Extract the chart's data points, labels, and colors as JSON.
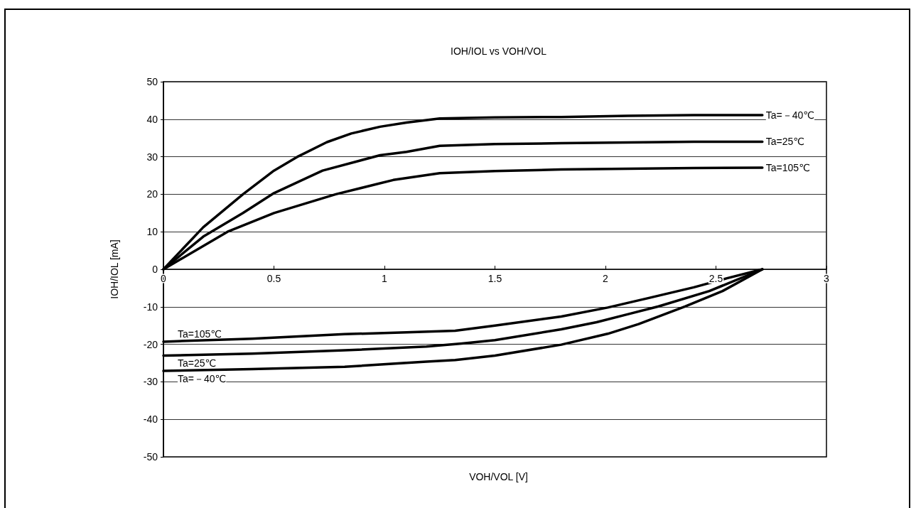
{
  "chart_data": {
    "type": "line",
    "title": "IOH/IOL vs VOH/VOL",
    "xlabel": "VOH/VOL [V]",
    "ylabel": "IOH/IOL [mA]",
    "xlim": [
      0,
      3
    ],
    "xticks": [
      0,
      0.5,
      1,
      1.5,
      2,
      2.5,
      3
    ],
    "ylim": [
      -50,
      50
    ],
    "yticks": [
      -50,
      -40,
      -30,
      -20,
      -10,
      0,
      10,
      20,
      30,
      40,
      50
    ],
    "grid": "y",
    "line_style": "solid",
    "series": [
      {
        "name": "Ta=－40℃",
        "color": "#000000",
        "x": [
          0,
          0.18,
          0.36,
          0.5,
          0.61,
          0.74,
          0.85,
          0.98,
          1.1,
          1.25,
          1.5,
          1.8,
          2.1,
          2.4,
          2.71
        ],
        "values": [
          0,
          11.2,
          20,
          26.3,
          30.1,
          33.9,
          36.2,
          38,
          39.1,
          40.2,
          40.5,
          40.6,
          40.9,
          41.1,
          41.1
        ]
      },
      {
        "name": "Ta=25℃",
        "color": "#000000",
        "x": [
          0,
          0.18,
          0.36,
          0.5,
          0.72,
          0.98,
          1.1,
          1.25,
          1.5,
          1.8,
          2.1,
          2.4,
          2.71
        ],
        "values": [
          0,
          8.7,
          15,
          20.3,
          26.3,
          30.4,
          31.3,
          32.9,
          33.4,
          33.6,
          33.8,
          34,
          34
        ]
      },
      {
        "name": "Ta=105℃",
        "color": "#000000",
        "x": [
          0,
          0.29,
          0.5,
          0.78,
          1.04,
          1.25,
          1.5,
          1.8,
          2.1,
          2.4,
          2.71
        ],
        "values": [
          0,
          10,
          15,
          20,
          23.8,
          25.6,
          26.2,
          26.6,
          26.8,
          27,
          27.1
        ]
      },
      {
        "name": "Ta=105℃",
        "color": "#000000",
        "x": [
          0,
          0.4,
          0.82,
          1.1,
          1.32,
          1.5,
          1.8,
          2.01,
          2.2,
          2.4,
          2.55,
          2.71
        ],
        "values": [
          -19.3,
          -18.5,
          -17.3,
          -16.8,
          -16.4,
          -15,
          -12.6,
          -10.2,
          -7.6,
          -4.8,
          -2.4,
          0
        ]
      },
      {
        "name": "Ta=25℃",
        "color": "#000000",
        "x": [
          0,
          0.4,
          0.82,
          1.19,
          1.35,
          1.5,
          1.8,
          1.96,
          2.1,
          2.24,
          2.47,
          2.71
        ],
        "values": [
          -23,
          -22.5,
          -21.6,
          -20.6,
          -19.8,
          -18.9,
          -16,
          -14.1,
          -12,
          -9.9,
          -5.8,
          0
        ]
      },
      {
        "name": "Ta=－40℃",
        "color": "#000000",
        "x": [
          0,
          0.4,
          0.82,
          1.19,
          1.32,
          1.5,
          1.8,
          2.01,
          2.15,
          2.36,
          2.53,
          2.71
        ],
        "values": [
          -27.1,
          -26.6,
          -26,
          -24.6,
          -24.2,
          -23,
          -20.1,
          -17.2,
          -14.6,
          -9.9,
          -5.8,
          0
        ]
      }
    ]
  }
}
